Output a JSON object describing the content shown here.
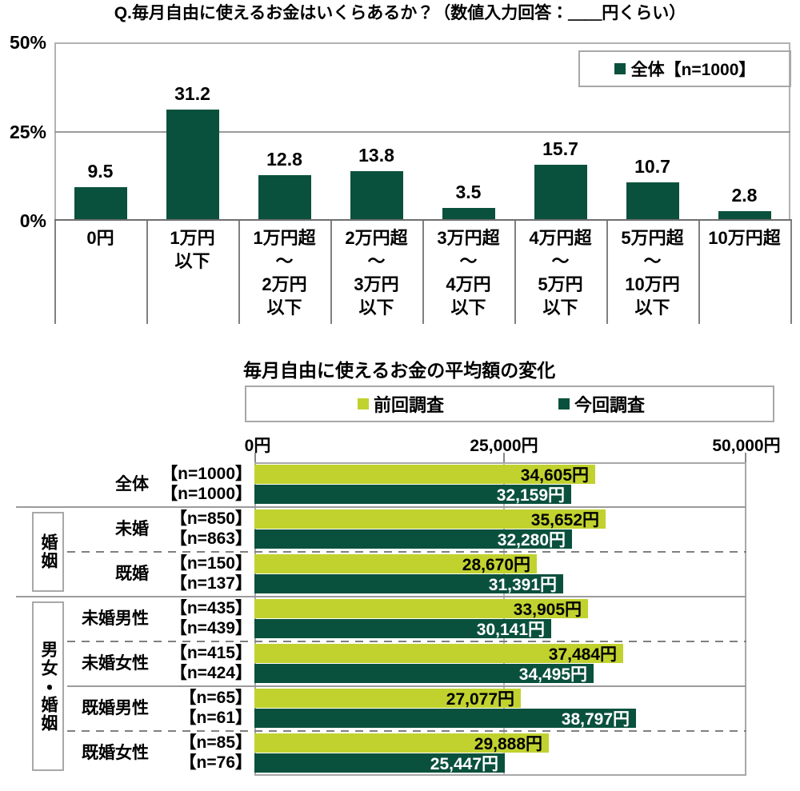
{
  "chart_data": [
    {
      "type": "bar",
      "title": "Q.毎月自由に使えるお金はいくらあるか？（数値入力回答：＿＿円くらい）",
      "legend": [
        {
          "label": "全体【n=1000】",
          "color": "#0a513d"
        }
      ],
      "yticks": [
        "50%",
        "25%",
        "0%"
      ],
      "ylim": [
        0,
        50
      ],
      "grid": "horizontal line at 25%",
      "categories": [
        "0円",
        "1万円\n以下",
        "1万円超\n～\n2万円\n以下",
        "2万円超\n～\n3万円\n以下",
        "3万円超\n～\n4万円\n以下",
        "4万円超\n～\n5万円\n以下",
        "5万円超\n～\n10万円\n以下",
        "10万円超"
      ],
      "values": [
        9.5,
        31.2,
        12.8,
        13.8,
        3.5,
        15.7,
        10.7,
        2.8
      ],
      "bar_color": "#0a513d"
    },
    {
      "type": "bar-horizontal",
      "title": "毎月自由に使えるお金の平均額の変化",
      "legend": [
        {
          "label": "前回調査",
          "color": "#c1d22f"
        },
        {
          "label": "今回調査",
          "color": "#0a513d"
        }
      ],
      "xticks": [
        "0円",
        "25,000円",
        "50,000円"
      ],
      "xlim": [
        0,
        50000
      ],
      "value_unit": "円",
      "rows": [
        {
          "category": "全体",
          "n_prev": "【n=1000】",
          "n_curr": "【n=1000】",
          "prev": 34605,
          "curr": 32159
        },
        {
          "category": "未婚",
          "n_prev": "【n=850】",
          "n_curr": "【n=863】",
          "prev": 35652,
          "curr": 32280
        },
        {
          "category": "既婚",
          "n_prev": "【n=150】",
          "n_curr": "【n=137】",
          "prev": 28670,
          "curr": 31391
        },
        {
          "category": "未婚男性",
          "n_prev": "【n=435】",
          "n_curr": "【n=439】",
          "prev": 33905,
          "curr": 30141
        },
        {
          "category": "未婚女性",
          "n_prev": "【n=415】",
          "n_curr": "【n=424】",
          "prev": 37484,
          "curr": 34495
        },
        {
          "category": "既婚男性",
          "n_prev": "【n=65】",
          "n_curr": "【n=61】",
          "prev": 27077,
          "curr": 38797
        },
        {
          "category": "既婚女性",
          "n_prev": "【n=85】",
          "n_curr": "【n=76】",
          "prev": 29888,
          "curr": 25447
        }
      ],
      "groups": [
        {
          "label": "婚姻",
          "first_row": 1,
          "last_row": 2
        },
        {
          "label": "男女・婚姻",
          "first_row": 3,
          "last_row": 6
        }
      ],
      "separators": [
        {
          "after_row": 0,
          "style": "solid",
          "full_width": true
        },
        {
          "after_row": 1,
          "style": "dashed",
          "full_width": false
        },
        {
          "after_row": 2,
          "style": "solid",
          "full_width": true
        },
        {
          "after_row": 3,
          "style": "dashed",
          "full_width": false
        },
        {
          "after_row": 4,
          "style": "solid",
          "full_width": false
        },
        {
          "after_row": 5,
          "style": "dashed",
          "full_width": false
        }
      ]
    }
  ]
}
